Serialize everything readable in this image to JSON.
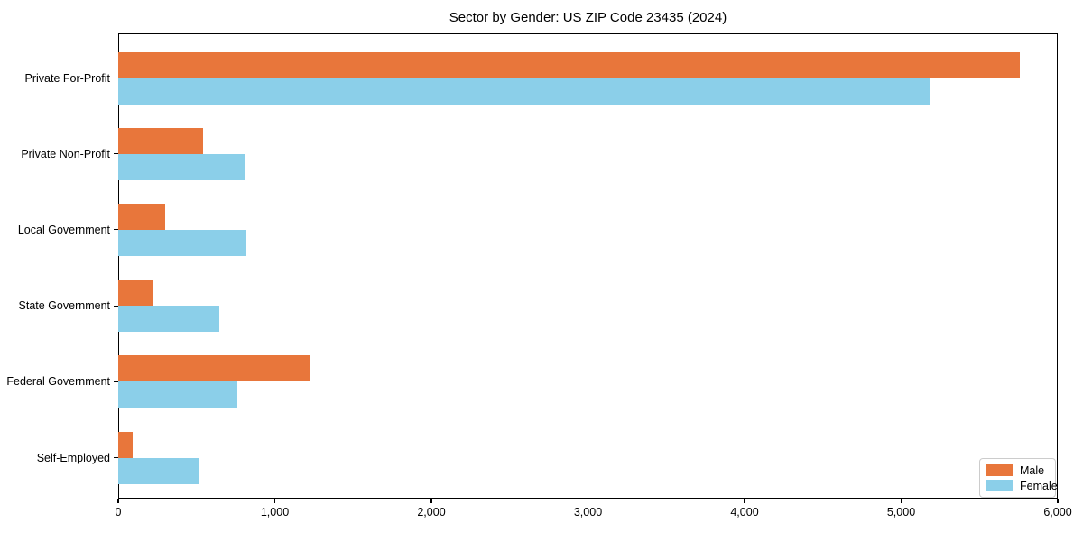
{
  "title": "Sector by Gender: US ZIP Code 23435 (2024)",
  "chart_data": {
    "type": "bar",
    "orientation": "horizontal",
    "title": "Sector by Gender: US ZIP Code 23435 (2024)",
    "categories": [
      "Private For-Profit",
      "Private Non-Profit",
      "Local Government",
      "State Government",
      "Federal Government",
      "Self-Employed"
    ],
    "series": [
      {
        "name": "Male",
        "color": "#E8763B",
        "values": [
          5770,
          540,
          300,
          220,
          1230,
          95
        ]
      },
      {
        "name": "Female",
        "color": "#8BCFE9",
        "values": [
          5190,
          810,
          820,
          645,
          760,
          515
        ]
      }
    ],
    "xlabel": "",
    "ylabel": "",
    "xlim": [
      0,
      6000
    ],
    "xticks": [
      0,
      1000,
      2000,
      3000,
      4000,
      5000,
      6000
    ],
    "xtick_labels": [
      "0",
      "1,000",
      "2,000",
      "3,000",
      "4,000",
      "5,000",
      "6,000"
    ],
    "grid": false,
    "legend_position": "lower right"
  }
}
